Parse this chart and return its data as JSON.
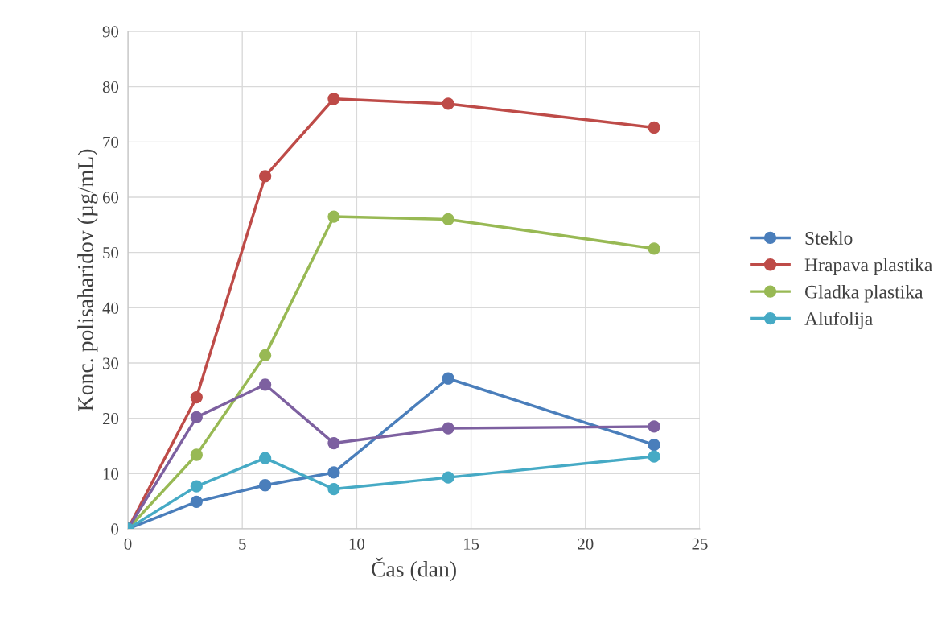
{
  "chart_data": {
    "type": "line",
    "xlabel": "Čas (dan)",
    "ylabel": "Konc. polisaharidov (µg/mL)",
    "x": [
      0,
      3,
      6,
      9,
      14,
      23
    ],
    "series": [
      {
        "name": "Steklo",
        "color": "#4a7ebb",
        "values": [
          0,
          4.9,
          7.9,
          10.2,
          27.2,
          15.2
        ]
      },
      {
        "name": "Hrapava plastika",
        "color": "#be4b48",
        "values": [
          0,
          23.8,
          63.8,
          77.8,
          76.9,
          72.6
        ]
      },
      {
        "name": "Gladka plastika",
        "color": "#98b954",
        "values": [
          0,
          13.4,
          31.4,
          56.5,
          56,
          50.7
        ]
      },
      {
        "color": "#7d60a0",
        "values": [
          0,
          20.2,
          26.1,
          15.5,
          18.2,
          18.5
        ]
      },
      {
        "name": "Alufolija",
        "color": "#46aac5",
        "values": [
          0,
          7.7,
          12.8,
          7.2,
          9.3,
          13.1
        ]
      }
    ],
    "xlim": [
      0,
      25
    ],
    "xticks": [
      0,
      5,
      10,
      15,
      20,
      25
    ],
    "ylim": [
      0,
      90
    ],
    "yticks": [
      0,
      10,
      20,
      30,
      40,
      50,
      60,
      70,
      80,
      90
    ],
    "grid": true,
    "legend": "right",
    "marker": "circle",
    "line_style": "solid"
  }
}
